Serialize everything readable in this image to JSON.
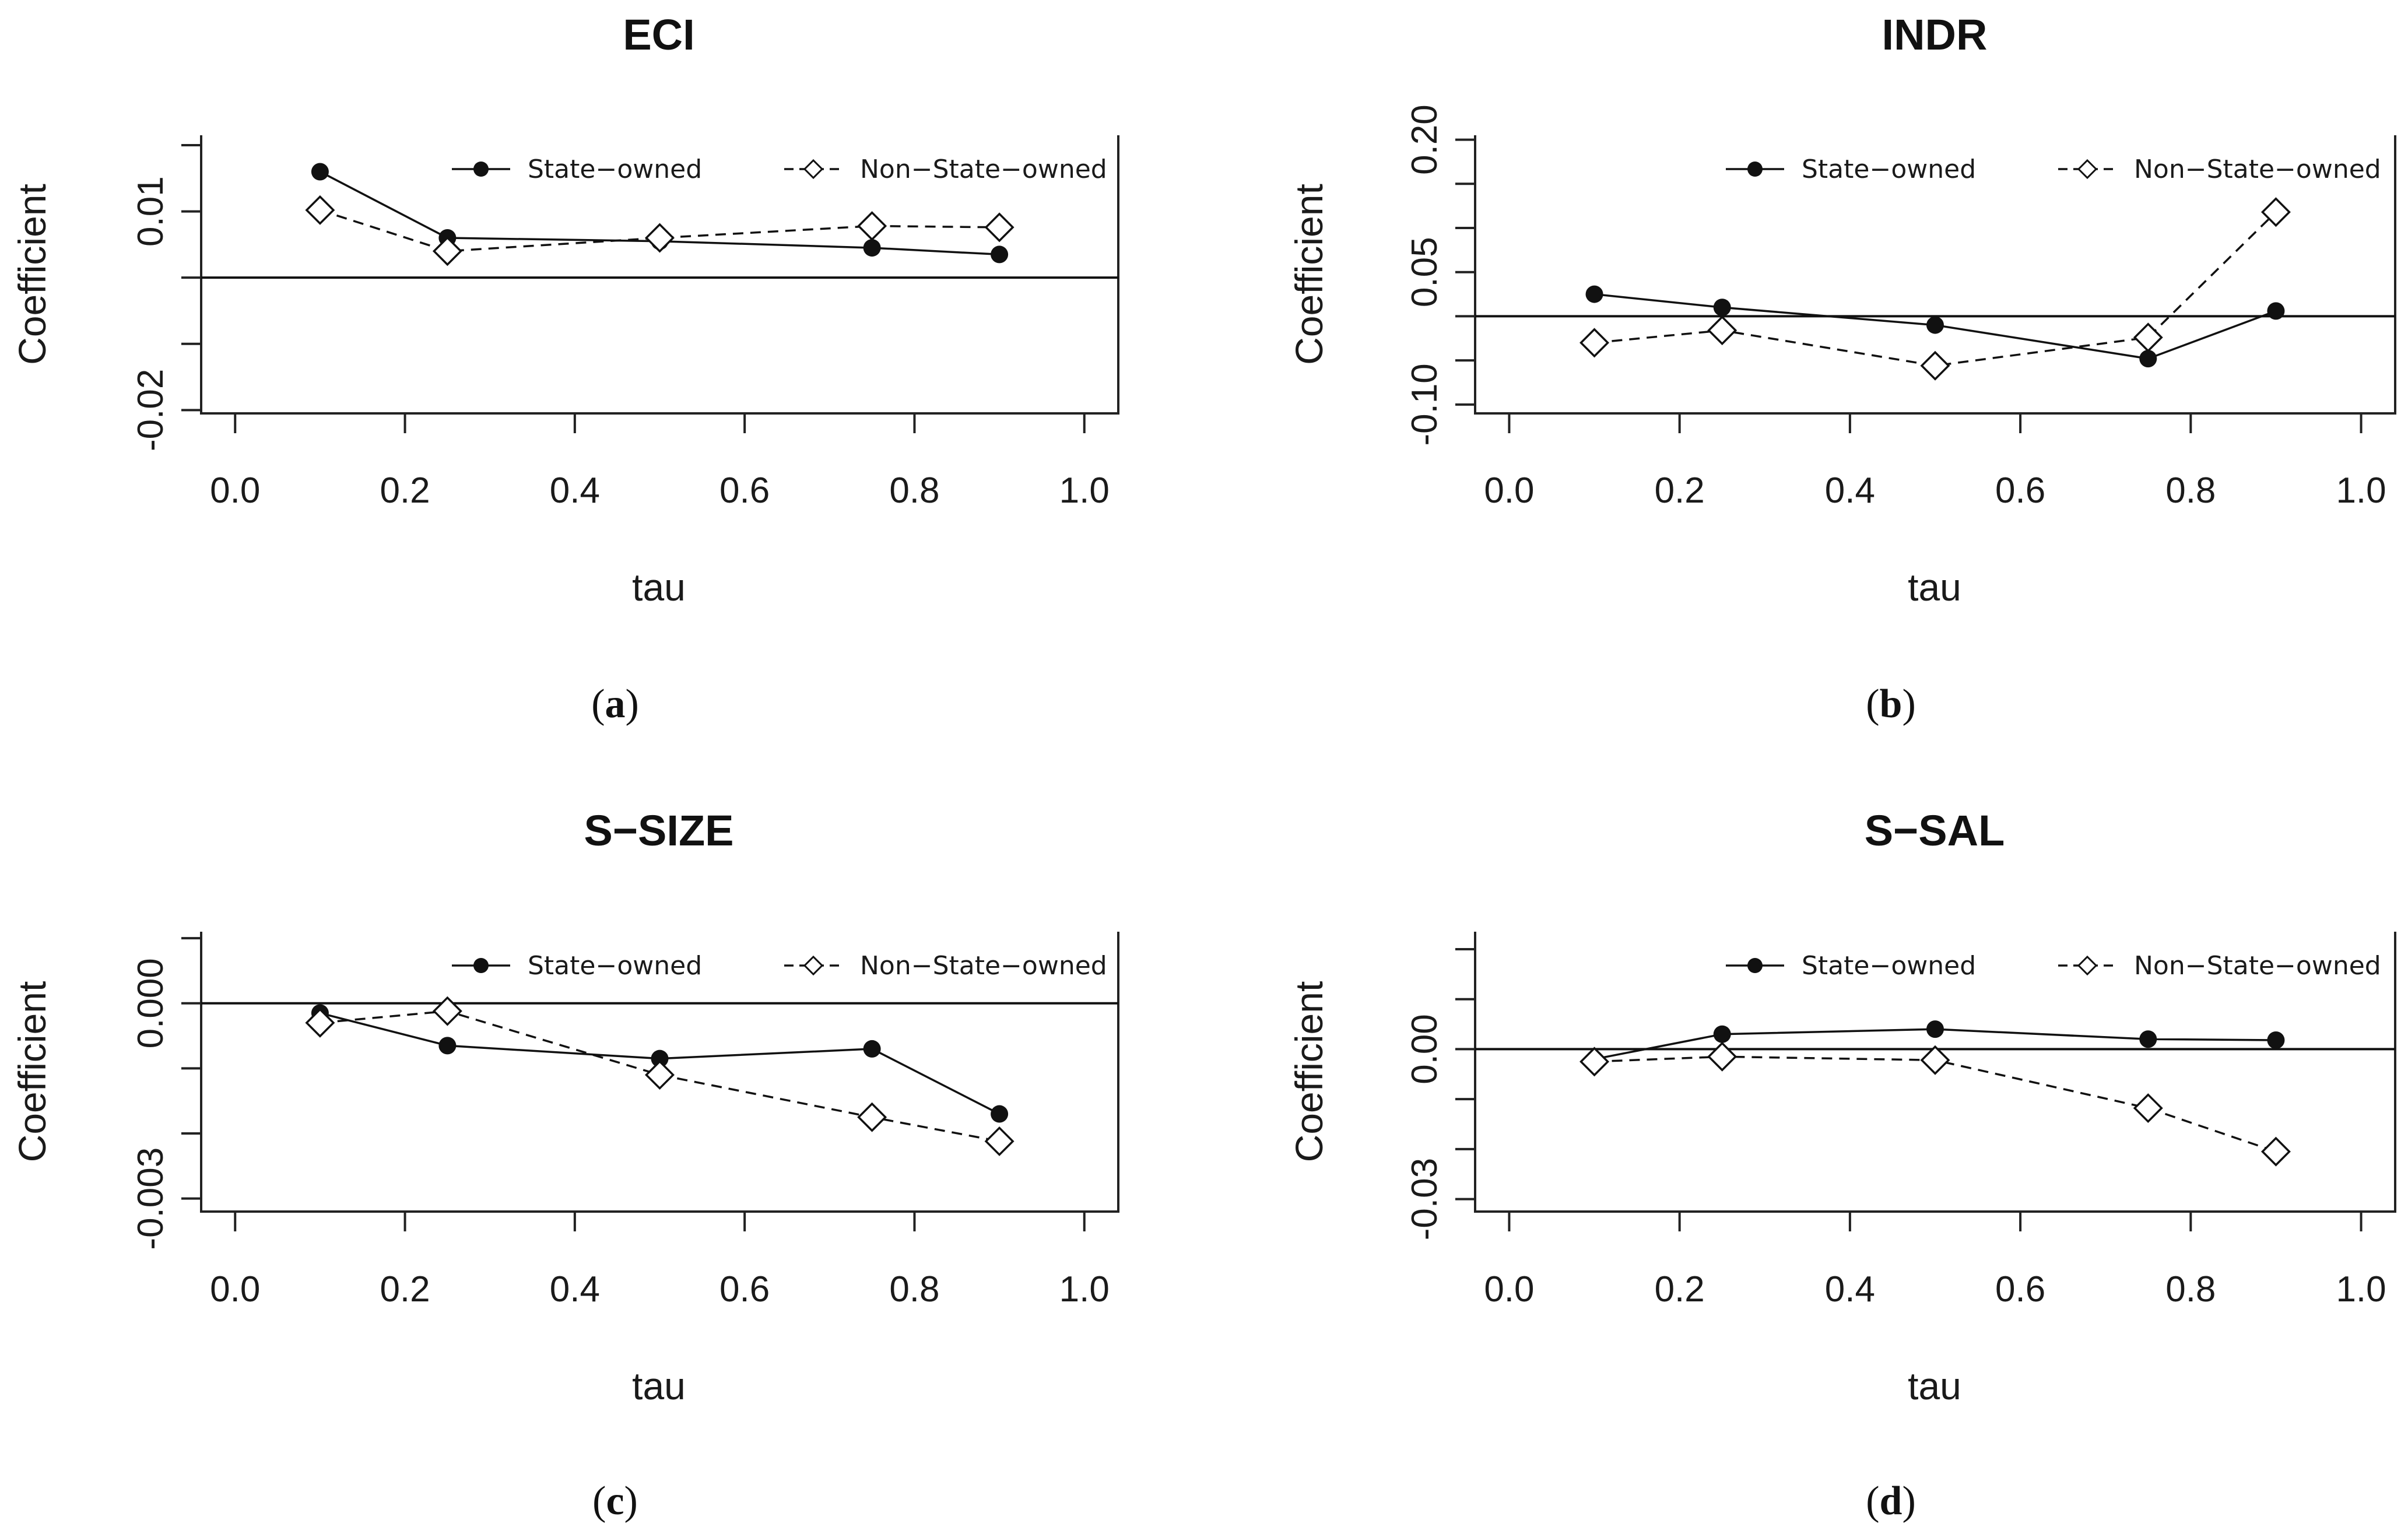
{
  "chart_data": [
    {
      "type": "line",
      "title": "ECI",
      "caption_letter": "a",
      "xlabel": "tau",
      "ylabel": "Coefficient",
      "xlim": [
        -0.04,
        1.04
      ],
      "ylim": [
        -0.0205,
        0.0215
      ],
      "xticks": [
        "0.0",
        "0.2",
        "0.4",
        "0.6",
        "0.8",
        "1.0"
      ],
      "yticks": [
        {
          "value": -0.02,
          "label": "-0.02"
        },
        {
          "value": -0.01,
          "label": ""
        },
        {
          "value": 0.0,
          "label": ""
        },
        {
          "value": 0.01,
          "label": "0.01"
        },
        {
          "value": 0.02,
          "label": ""
        }
      ],
      "hline": 0,
      "x": [
        0.1,
        0.25,
        0.5,
        0.75,
        0.9
      ],
      "series": [
        {
          "name": "State−owned",
          "values": [
            0.016,
            0.006,
            0.0055,
            0.0045,
            0.0035
          ]
        },
        {
          "name": "Non−State−owned",
          "values": [
            0.0102,
            0.004,
            0.006,
            0.0078,
            0.0076
          ]
        }
      ],
      "legend": [
        "State−owned",
        "Non−State−owned"
      ]
    },
    {
      "type": "line",
      "title": "INDR",
      "caption_letter": "b",
      "xlabel": "tau",
      "ylabel": "Coefficient",
      "xlim": [
        -0.04,
        1.04
      ],
      "ylim": [
        -0.11,
        0.205
      ],
      "xticks": [
        "0.0",
        "0.2",
        "0.4",
        "0.6",
        "0.8",
        "1.0"
      ],
      "yticks": [
        {
          "value": -0.1,
          "label": "-0.10"
        },
        {
          "value": -0.05,
          "label": ""
        },
        {
          "value": 0.0,
          "label": ""
        },
        {
          "value": 0.05,
          "label": "0.05"
        },
        {
          "value": 0.1,
          "label": ""
        },
        {
          "value": 0.15,
          "label": ""
        },
        {
          "value": 0.2,
          "label": "0.20"
        }
      ],
      "hline": 0,
      "x": [
        0.1,
        0.25,
        0.5,
        0.75,
        0.9
      ],
      "series": [
        {
          "name": "State−owned",
          "values": [
            0.025,
            0.01,
            -0.01,
            -0.048,
            0.006
          ]
        },
        {
          "name": "Non−State−owned",
          "values": [
            -0.03,
            -0.016,
            -0.056,
            -0.024,
            0.118
          ]
        }
      ],
      "legend": [
        "State−owned",
        "Non−State−owned"
      ]
    },
    {
      "type": "line",
      "title": "S−SIZE",
      "caption_letter": "c",
      "xlabel": "tau",
      "ylabel": "Coefficient",
      "xlim": [
        -0.04,
        1.04
      ],
      "ylim": [
        -0.0032,
        0.0011
      ],
      "xticks": [
        "0.0",
        "0.2",
        "0.4",
        "0.6",
        "0.8",
        "1.0"
      ],
      "yticks": [
        {
          "value": -0.003,
          "label": "-0.003"
        },
        {
          "value": -0.002,
          "label": ""
        },
        {
          "value": -0.001,
          "label": ""
        },
        {
          "value": 0.0,
          "label": "0.000"
        },
        {
          "value": 0.001,
          "label": ""
        }
      ],
      "hline": 0,
      "x": [
        0.1,
        0.25,
        0.5,
        0.75,
        0.9
      ],
      "series": [
        {
          "name": "State−owned",
          "values": [
            -0.00015,
            -0.00065,
            -0.00085,
            -0.0007,
            -0.0017
          ]
        },
        {
          "name": "Non−State−owned",
          "values": [
            -0.0003,
            -0.00012,
            -0.0011,
            -0.00175,
            -0.00212
          ]
        }
      ],
      "legend": [
        "State−owned",
        "Non−State−owned"
      ]
    },
    {
      "type": "line",
      "title": "S−SAL",
      "caption_letter": "d",
      "xlabel": "tau",
      "ylabel": "Coefficient",
      "xlim": [
        -0.04,
        1.04
      ],
      "ylim": [
        -0.0325,
        0.0235
      ],
      "xticks": [
        "0.0",
        "0.2",
        "0.4",
        "0.6",
        "0.8",
        "1.0"
      ],
      "yticks": [
        {
          "value": -0.03,
          "label": "-0.03"
        },
        {
          "value": -0.02,
          "label": ""
        },
        {
          "value": -0.01,
          "label": ""
        },
        {
          "value": 0.0,
          "label": "0.00"
        },
        {
          "value": 0.01,
          "label": ""
        },
        {
          "value": 0.02,
          "label": ""
        }
      ],
      "hline": 0,
      "x": [
        0.1,
        0.25,
        0.5,
        0.75,
        0.9
      ],
      "series": [
        {
          "name": "State−owned",
          "values": [
            -0.002,
            0.003,
            0.004,
            0.002,
            0.0018
          ]
        },
        {
          "name": "Non−State−owned",
          "values": [
            -0.0025,
            -0.0015,
            -0.0022,
            -0.0118,
            -0.0205
          ]
        }
      ],
      "legend": [
        "State−owned",
        "Non−State−owned"
      ]
    }
  ]
}
